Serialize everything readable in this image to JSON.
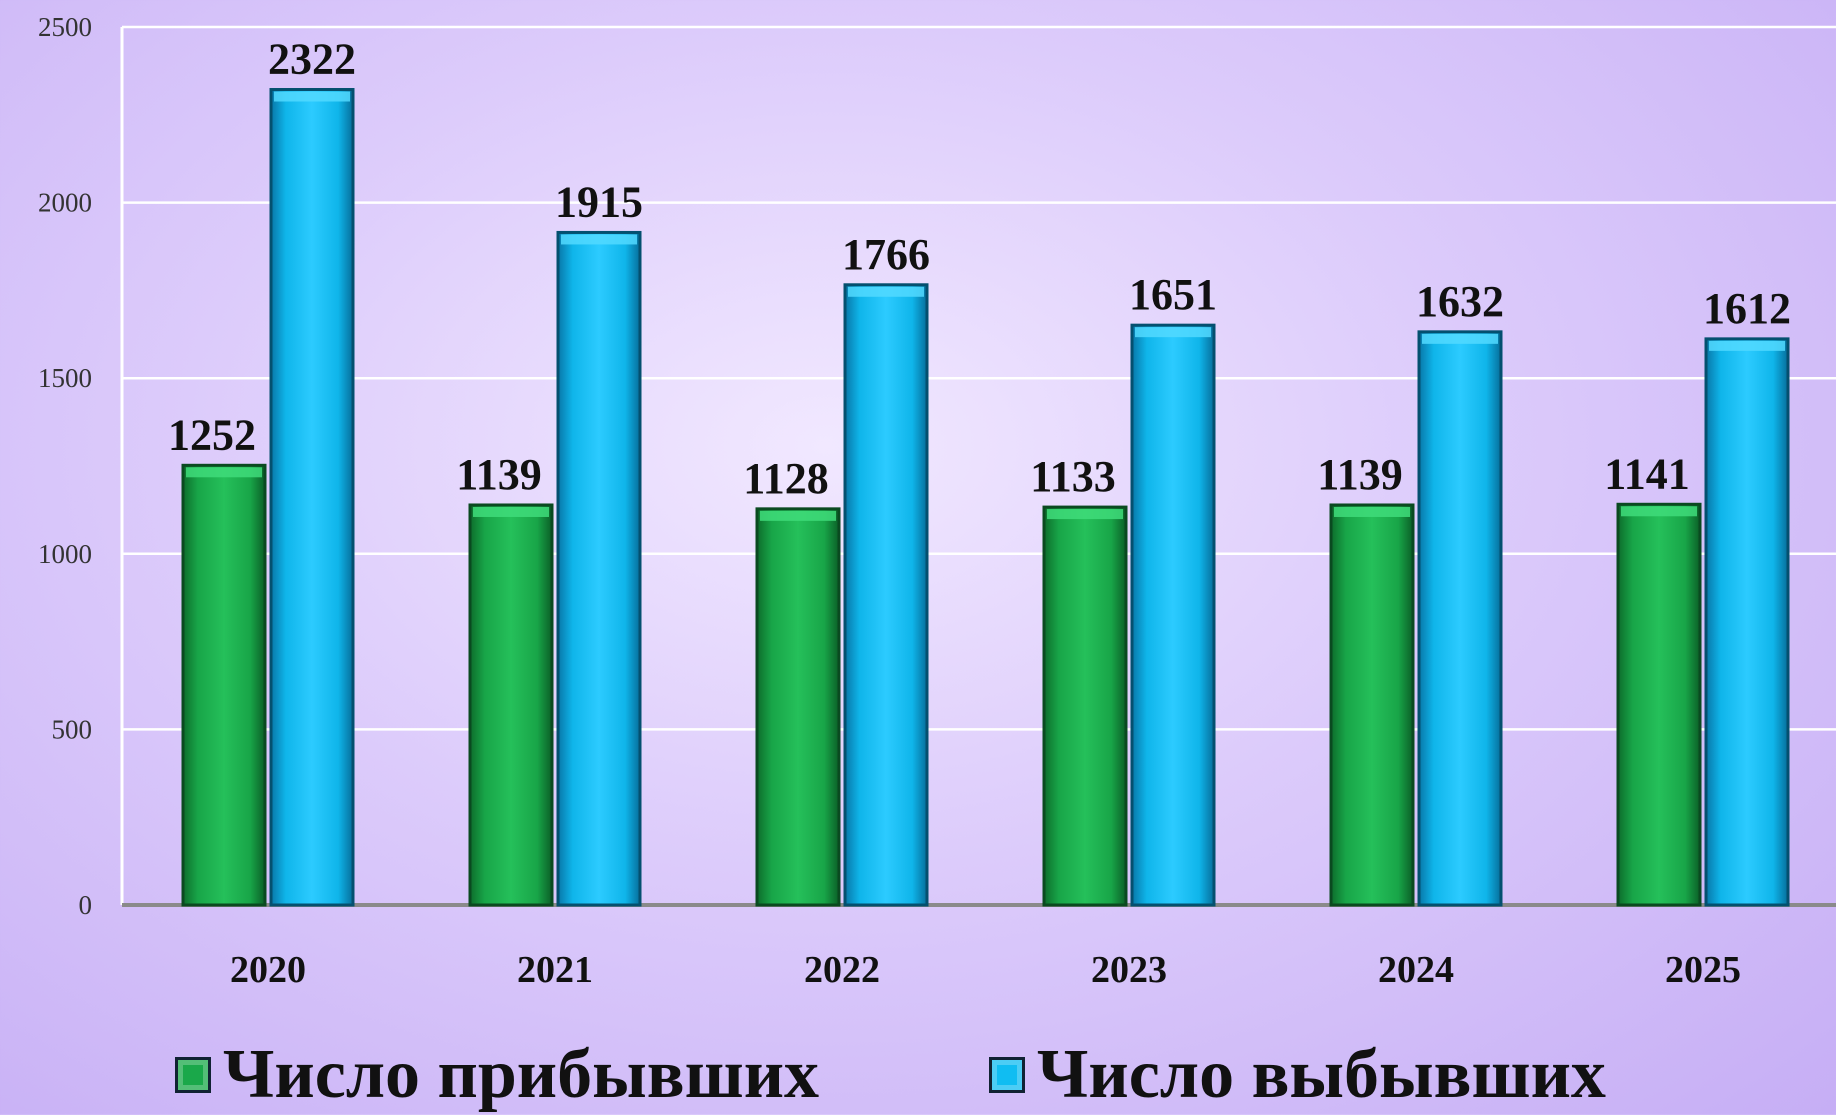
{
  "chart_data": {
    "type": "bar",
    "categories": [
      "2020",
      "2021",
      "2022",
      "2023",
      "2024",
      "2025"
    ],
    "series": [
      {
        "name": "Число прибывших",
        "values": [
          1252,
          1139,
          1128,
          1133,
          1139,
          1141
        ],
        "color": "#1aa84a"
      },
      {
        "name": "Число выбывших",
        "values": [
          2322,
          1915,
          1766,
          1651,
          1632,
          1612
        ],
        "color": "#10bdf2"
      }
    ],
    "ylim": [
      0,
      2500
    ],
    "yticks": [
      0,
      500,
      1000,
      1500,
      2000,
      2500
    ],
    "grid": true,
    "legend_position": "bottom"
  }
}
